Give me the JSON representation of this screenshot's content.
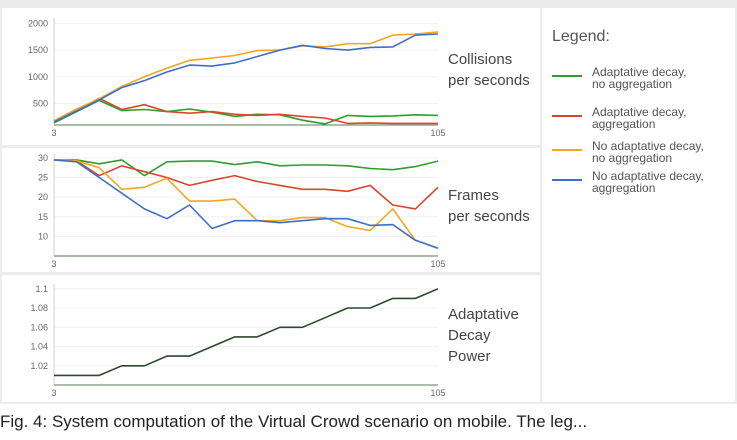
{
  "caption": "Fig. 4: System computation of the Virtual Crowd scenario on mobile. The leg...",
  "legend": {
    "title": "Legend:",
    "items": [
      {
        "name": "Adaptative decay, no aggregation",
        "line1": "Adaptative decay,",
        "line2": "no aggregation",
        "color": "#2ca02c"
      },
      {
        "name": "Adaptative decay, aggregation",
        "line1": "Adaptative decay,",
        "line2": "aggregation",
        "color": "#d9472b"
      },
      {
        "name": "No adaptative decay, no aggregation",
        "line1": "No adaptative decay,",
        "line2": "no aggregation",
        "color": "#f4a623"
      },
      {
        "name": "No adaptative decay, aggregation",
        "line1": "No adaptative decay,",
        "line2": "aggregation",
        "color": "#3d6fc9"
      }
    ]
  },
  "chart_data": [
    {
      "type": "line",
      "title_lines": [
        "Collisions",
        "per seconds"
      ],
      "x_ticks": [
        "3",
        "105"
      ],
      "ylim": [
        100,
        2100
      ],
      "y_ticks": [
        500,
        1000,
        1500,
        2000
      ],
      "x": [
        3,
        9,
        15,
        21,
        27,
        33,
        39,
        45,
        51,
        57,
        63,
        69,
        75,
        81,
        87,
        93,
        99,
        105
      ],
      "series": [
        {
          "name": "Adaptative decay, no aggregation",
          "color": "#2ca02c",
          "values": [
            140,
            350,
            560,
            370,
            390,
            350,
            400,
            340,
            260,
            300,
            290,
            190,
            120,
            280,
            260,
            270,
            290,
            280
          ]
        },
        {
          "name": "Adaptative decay, aggregation",
          "color": "#d9472b",
          "values": [
            170,
            370,
            600,
            390,
            480,
            350,
            320,
            350,
            300,
            280,
            300,
            260,
            230,
            130,
            140,
            130,
            130,
            130
          ]
        },
        {
          "name": "No adaptative decay, no aggregation",
          "color": "#f4a623",
          "values": [
            180,
            400,
            590,
            820,
            1000,
            1160,
            1310,
            1350,
            1400,
            1490,
            1500,
            1580,
            1560,
            1620,
            1620,
            1780,
            1800,
            1840
          ]
        },
        {
          "name": "No adaptative decay, aggregation",
          "color": "#3d6fc9",
          "values": [
            160,
            360,
            570,
            800,
            930,
            1090,
            1220,
            1200,
            1260,
            1380,
            1500,
            1590,
            1530,
            1500,
            1550,
            1560,
            1780,
            1800
          ]
        }
      ]
    },
    {
      "type": "line",
      "title_lines": [
        "Frames",
        "per seconds"
      ],
      "x_ticks": [
        "3",
        "105"
      ],
      "ylim": [
        5,
        31
      ],
      "y_ticks": [
        10,
        15,
        20,
        25,
        30
      ],
      "x": [
        3,
        9,
        15,
        21,
        27,
        33,
        39,
        45,
        51,
        57,
        63,
        69,
        75,
        81,
        87,
        93,
        99,
        105
      ],
      "series": [
        {
          "name": "Adaptative decay, no aggregation",
          "color": "#2ca02c",
          "values": [
            29.5,
            29.5,
            28.5,
            29.5,
            25.5,
            29,
            29.2,
            29.2,
            28.3,
            29,
            28,
            28.2,
            28.2,
            28,
            27.3,
            27,
            27.8,
            29.2
          ]
        },
        {
          "name": "Adaptative decay, aggregation",
          "color": "#d9472b",
          "values": [
            29.5,
            29.2,
            25.5,
            28,
            26.5,
            25,
            23,
            24.3,
            25.5,
            24,
            23,
            22,
            22,
            21.5,
            23,
            18,
            17,
            22.5
          ]
        },
        {
          "name": "No adaptative decay, no aggregation",
          "color": "#f4a623",
          "values": [
            29.5,
            29.3,
            27.5,
            22,
            22.5,
            24.8,
            19,
            19,
            19.5,
            14,
            14,
            14.8,
            14.8,
            12.5,
            11.5,
            17,
            9,
            7
          ]
        },
        {
          "name": "No adaptative decay, aggregation",
          "color": "#3d6fc9",
          "values": [
            29.5,
            29,
            25,
            21,
            17,
            14.5,
            18,
            12,
            14,
            14,
            13.5,
            14,
            14.5,
            14.5,
            12.8,
            13,
            9,
            7
          ]
        }
      ]
    },
    {
      "type": "line",
      "title_lines": [
        "Adaptative",
        "Decay",
        "Power"
      ],
      "x_ticks": [
        "3",
        "105"
      ],
      "ylim": [
        1.0,
        1.105
      ],
      "y_ticks": [
        1.02,
        1.04,
        1.06,
        1.08,
        1.1
      ],
      "y_tick_labels": [
        "1.02",
        "1.04",
        "1.06",
        "1.08",
        "1.1"
      ],
      "x": [
        3,
        9,
        15,
        21,
        27,
        33,
        39,
        45,
        51,
        57,
        63,
        69,
        75,
        81,
        87,
        93,
        99,
        105
      ],
      "series": [
        {
          "name": "Adaptative Decay Power",
          "color": "#2b4a2b",
          "values": [
            1.01,
            1.01,
            1.01,
            1.02,
            1.02,
            1.03,
            1.03,
            1.04,
            1.05,
            1.05,
            1.06,
            1.06,
            1.07,
            1.08,
            1.08,
            1.09,
            1.09,
            1.1
          ]
        }
      ]
    }
  ]
}
